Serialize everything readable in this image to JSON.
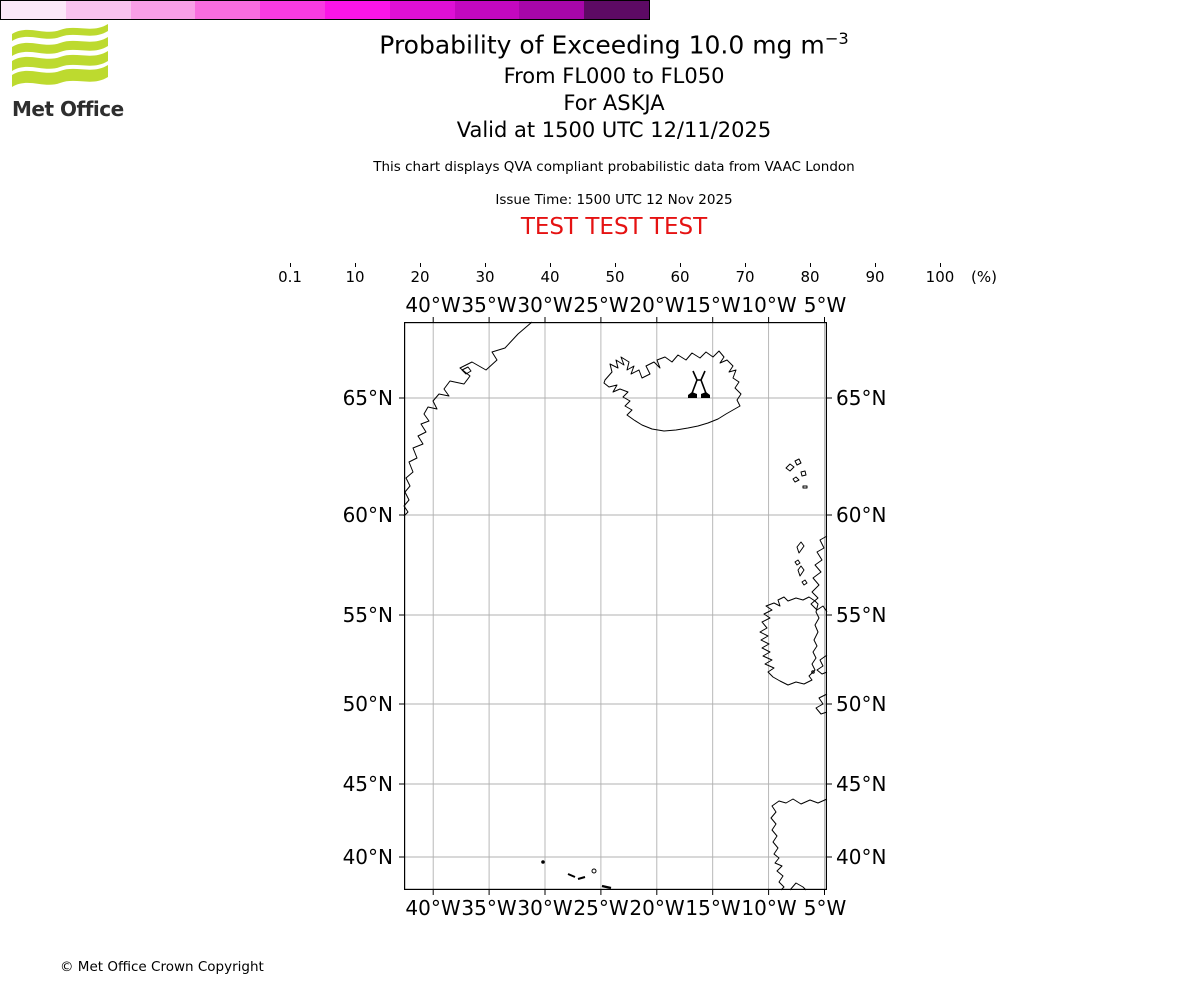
{
  "logo": {
    "brand": "Met Office",
    "color": "#bdda2f"
  },
  "header": {
    "title": "Probability of Exceeding 10.0 mg m",
    "title_sup": "−3",
    "subtitle1": "From FL000 to FL050",
    "subtitle2": "For ASKJA",
    "subtitle3": "Valid at 1500 UTC 12/11/2025",
    "disclaimer": "This chart displays QVA compliant probabilistic data from VAAC London",
    "issue_time": "Issue Time: 1500 UTC 12 Nov 2025",
    "test_banner": "TEST TEST TEST",
    "test_color": "#e51212"
  },
  "colorbar": {
    "unit": "(%)",
    "tick_labels": [
      "0.1",
      "10",
      "20",
      "30",
      "40",
      "50",
      "60",
      "70",
      "80",
      "90",
      "100"
    ],
    "colors": [
      "#fbe9f8",
      "#f9c3ef",
      "#f99fe7",
      "#f96ddf",
      "#f93be2",
      "#fb15e7",
      "#de10d4",
      "#c308bf",
      "#a706a9",
      "#5d0a64"
    ]
  },
  "map": {
    "lon_labels": [
      "40°W",
      "35°W",
      "30°W",
      "25°W",
      "20°W",
      "15°W",
      "10°W",
      "5°W"
    ],
    "lat_labels": [
      "65°N",
      "60°N",
      "55°N",
      "50°N",
      "45°N",
      "40°N"
    ],
    "volcano_name": "ASKJA"
  },
  "footer": {
    "copyright": "© Met Office Crown Copyright"
  },
  "chart_data": {
    "type": "heatmap",
    "title": "Probability of Exceeding 10.0 mg m⁻³",
    "subtitle": [
      "From FL000 to FL050",
      "For ASKJA",
      "Valid at 1500 UTC 12/11/2025"
    ],
    "source_note": "This chart displays QVA compliant probabilistic data from VAAC London",
    "issue_time": "1500 UTC 12 Nov 2025",
    "status_banner": "TEST TEST TEST",
    "projection": "Mercator",
    "map_extent": {
      "lon_min": -43.5,
      "lon_max": -4.8,
      "lat_min": 37.5,
      "lat_max": 67.8
    },
    "x_tick_labels": [
      "40°W",
      "35°W",
      "30°W",
      "25°W",
      "20°W",
      "15°W",
      "10°W",
      "5°W"
    ],
    "y_tick_labels": [
      "65°N",
      "60°N",
      "55°N",
      "50°N",
      "45°N",
      "40°N"
    ],
    "grid": true,
    "legend": {
      "position": "top, horizontal colorbar",
      "unit": "%",
      "boundaries": [
        0.1,
        10,
        20,
        30,
        40,
        50,
        60,
        70,
        80,
        90,
        100
      ],
      "colors": [
        "#fbe9f8",
        "#f9c3ef",
        "#f99fe7",
        "#f96ddf",
        "#f93be2",
        "#fb15e7",
        "#de10d4",
        "#c308bf",
        "#a706a9",
        "#5d0a64"
      ]
    },
    "volcano": {
      "name": "ASKJA",
      "approx_lon": -16.8,
      "approx_lat": 65.0,
      "marker": "volcano symbol"
    },
    "probability_field": "no shaded exceedance regions visible on map (all below 0.1%)",
    "coastlines_shown": [
      "Greenland east coast",
      "Iceland",
      "Faroe Islands",
      "Hebrides/Scotland",
      "Ireland",
      "Cornwall",
      "Brittany",
      "Iberian Peninsula",
      "Azores"
    ]
  }
}
